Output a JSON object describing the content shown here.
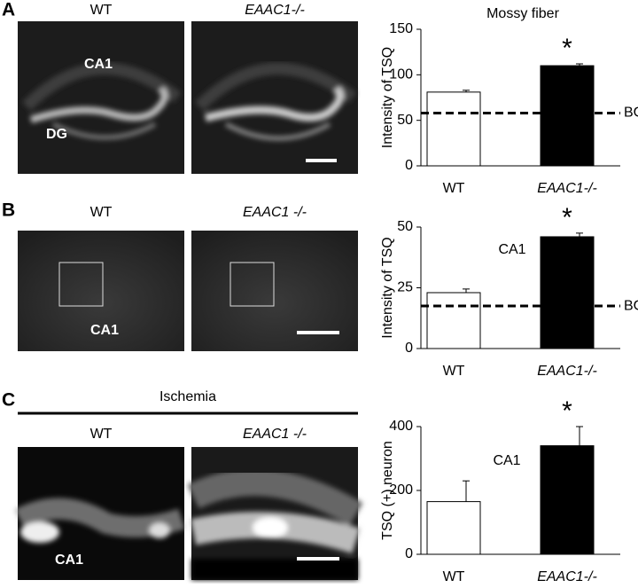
{
  "panels": [
    {
      "label": "A",
      "images": [
        {
          "title": "WT",
          "labels": [
            "CA1",
            "DG"
          ]
        },
        {
          "title": "EAAC1-/-"
        }
      ]
    },
    {
      "label": "B",
      "images": [
        {
          "title": "WT",
          "labels": [
            "CA1"
          ]
        },
        {
          "title": "EAAC1 -/-"
        }
      ]
    },
    {
      "label": "C",
      "header": "Ischemia",
      "images": [
        {
          "title": "WT",
          "labels": [
            "CA1"
          ]
        },
        {
          "title": "EAAC1 -/-"
        }
      ]
    }
  ],
  "chart_data": [
    {
      "type": "bar",
      "title": "Mossy fiber",
      "ylabel": "Intensity of TSQ",
      "categories": [
        "WT",
        "EAAC1-/-"
      ],
      "values": [
        81,
        110
      ],
      "errors": [
        2,
        2
      ],
      "colors": [
        "#ffffff",
        "#000000"
      ],
      "ylim": [
        0,
        150
      ],
      "yticks": [
        0,
        50,
        100,
        150
      ],
      "reference": {
        "value": 58,
        "label": "BG"
      },
      "significance": "*"
    },
    {
      "type": "bar",
      "title": "CA1",
      "ylabel": "Intensity of TSQ",
      "categories": [
        "WT",
        "EAAC1-/-"
      ],
      "values": [
        23,
        46
      ],
      "errors": [
        1.5,
        1.5
      ],
      "colors": [
        "#ffffff",
        "#000000"
      ],
      "ylim": [
        0,
        50
      ],
      "yticks": [
        0,
        25,
        50
      ],
      "reference": {
        "value": 17.5,
        "label": "BG"
      },
      "significance": "*"
    },
    {
      "type": "bar",
      "title": "CA1",
      "ylabel": "TSQ (+) neuron",
      "categories": [
        "WT",
        "EAAC1-/-"
      ],
      "values": [
        165,
        340
      ],
      "errors": [
        65,
        60
      ],
      "colors": [
        "#ffffff",
        "#000000"
      ],
      "ylim": [
        0,
        400
      ],
      "yticks": [
        0,
        200,
        400
      ],
      "significance": "*"
    }
  ]
}
